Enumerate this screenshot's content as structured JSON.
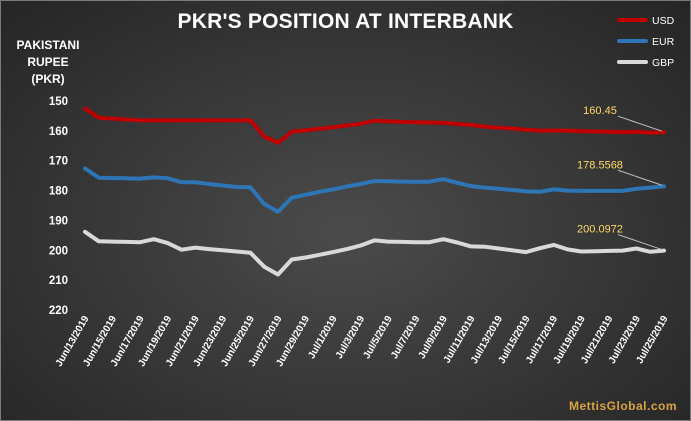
{
  "chart_data": {
    "type": "line",
    "title": "PKR'S POSITION AT INTERBANK",
    "ylabel_lines": [
      "PAKISTANI",
      "RUPEE",
      "(PKR)"
    ],
    "ylim": [
      150,
      220
    ],
    "y_inverted": true,
    "yticks": [
      150,
      160,
      170,
      180,
      190,
      200,
      210,
      220
    ],
    "x": [
      "Jun/13/2019",
      "Jun/14/2019",
      "Jun/15/2019",
      "Jun/16/2019",
      "Jun/17/2019",
      "Jun/18/2019",
      "Jun/19/2019",
      "Jun/20/2019",
      "Jun/21/2019",
      "Jun/22/2019",
      "Jun/23/2019",
      "Jun/24/2019",
      "Jun/25/2019",
      "Jun/26/2019",
      "Jun/27/2019",
      "Jun/28/2019",
      "Jun/29/2019",
      "Jun/30/2019",
      "Jul/1/2019",
      "Jul/2/2019",
      "Jul/3/2019",
      "Jul/4/2019",
      "Jul/5/2019",
      "Jul/6/2019",
      "Jul/7/2019",
      "Jul/8/2019",
      "Jul/9/2019",
      "Jul/10/2019",
      "Jul/11/2019",
      "Jul/12/2019",
      "Jul/13/2019",
      "Jul/14/2019",
      "Jul/15/2019",
      "Jul/16/2019",
      "Jul/17/2019",
      "Jul/18/2019",
      "Jul/19/2019",
      "Jul/20/2019",
      "Jul/21/2019",
      "Jul/22/2019",
      "Jul/23/2019",
      "Jul/24/2019",
      "Jul/25/2019"
    ],
    "xtick_labels": [
      "Jun/13/2019",
      "Jun/15/2019",
      "Jun/17/2019",
      "Jun/19/2019",
      "Jun/21/2019",
      "Jun/23/2019",
      "Jun/25/2019",
      "Jun/27/2019",
      "Jun/29/2019",
      "Jul/1/2019",
      "Jul/3/2019",
      "Jul/5/2019",
      "Jul/7/2019",
      "Jul/9/2019",
      "Jul/11/2019",
      "Jul/13/2019",
      "Jul/15/2019",
      "Jul/17/2019",
      "Jul/19/2019",
      "Jul/21/2019",
      "Jul/23/2019",
      "Jul/25/2019"
    ],
    "series": [
      {
        "name": "USD",
        "color": "#c00000",
        "values": [
          152.5,
          155.6,
          155.9,
          156.2,
          156.5,
          156.5,
          156.5,
          156.5,
          156.5,
          156.5,
          156.5,
          156.5,
          156.5,
          161.9,
          164.0,
          160.3,
          159.8,
          159.3,
          158.8,
          158.2,
          157.6,
          156.6,
          156.8,
          157.0,
          157.1,
          157.2,
          157.3,
          157.7,
          158.0,
          158.6,
          158.9,
          159.2,
          159.6,
          159.9,
          159.9,
          159.9,
          160.1,
          160.2,
          160.3,
          160.4,
          160.3,
          160.6,
          160.45
        ]
      },
      {
        "name": "EUR",
        "color": "#2e75b6",
        "values": [
          172.6,
          175.7,
          175.8,
          175.9,
          176.0,
          175.6,
          175.9,
          177.2,
          177.2,
          177.8,
          178.3,
          178.8,
          178.9,
          184.5,
          187.1,
          182.4,
          181.4,
          180.4,
          179.6,
          178.6,
          177.8,
          176.8,
          176.9,
          177.0,
          177.1,
          177.0,
          176.2,
          177.4,
          178.5,
          179.0,
          179.4,
          179.8,
          180.2,
          180.4,
          179.6,
          180.0,
          180.1,
          180.1,
          180.1,
          180.1,
          179.4,
          179.0,
          178.5568
        ]
      },
      {
        "name": "GBP",
        "color": "#d9d9d9",
        "values": [
          193.8,
          197.0,
          197.1,
          197.2,
          197.3,
          196.3,
          197.6,
          199.8,
          199.1,
          199.6,
          200.0,
          200.4,
          200.8,
          205.5,
          208.1,
          203.1,
          202.4,
          201.5,
          200.6,
          199.6,
          198.4,
          196.7,
          197.1,
          197.2,
          197.3,
          197.3,
          196.3,
          197.4,
          198.7,
          198.8,
          199.4,
          200.0,
          200.6,
          199.3,
          198.2,
          199.7,
          200.4,
          200.3,
          200.2,
          200.1,
          199.4,
          200.5,
          200.0972
        ]
      }
    ],
    "annotations": [
      {
        "series": "USD",
        "text": "160.45",
        "color": "#ffd966"
      },
      {
        "series": "EUR",
        "text": "178.5568",
        "color": "#ffd966"
      },
      {
        "series": "GBP",
        "text": "200.0972",
        "color": "#ffd966"
      }
    ],
    "legend": {
      "position": "top-right",
      "items": [
        "USD",
        "EUR",
        "GBP"
      ]
    },
    "grid": false
  },
  "watermark": "MettisGlobal.com"
}
